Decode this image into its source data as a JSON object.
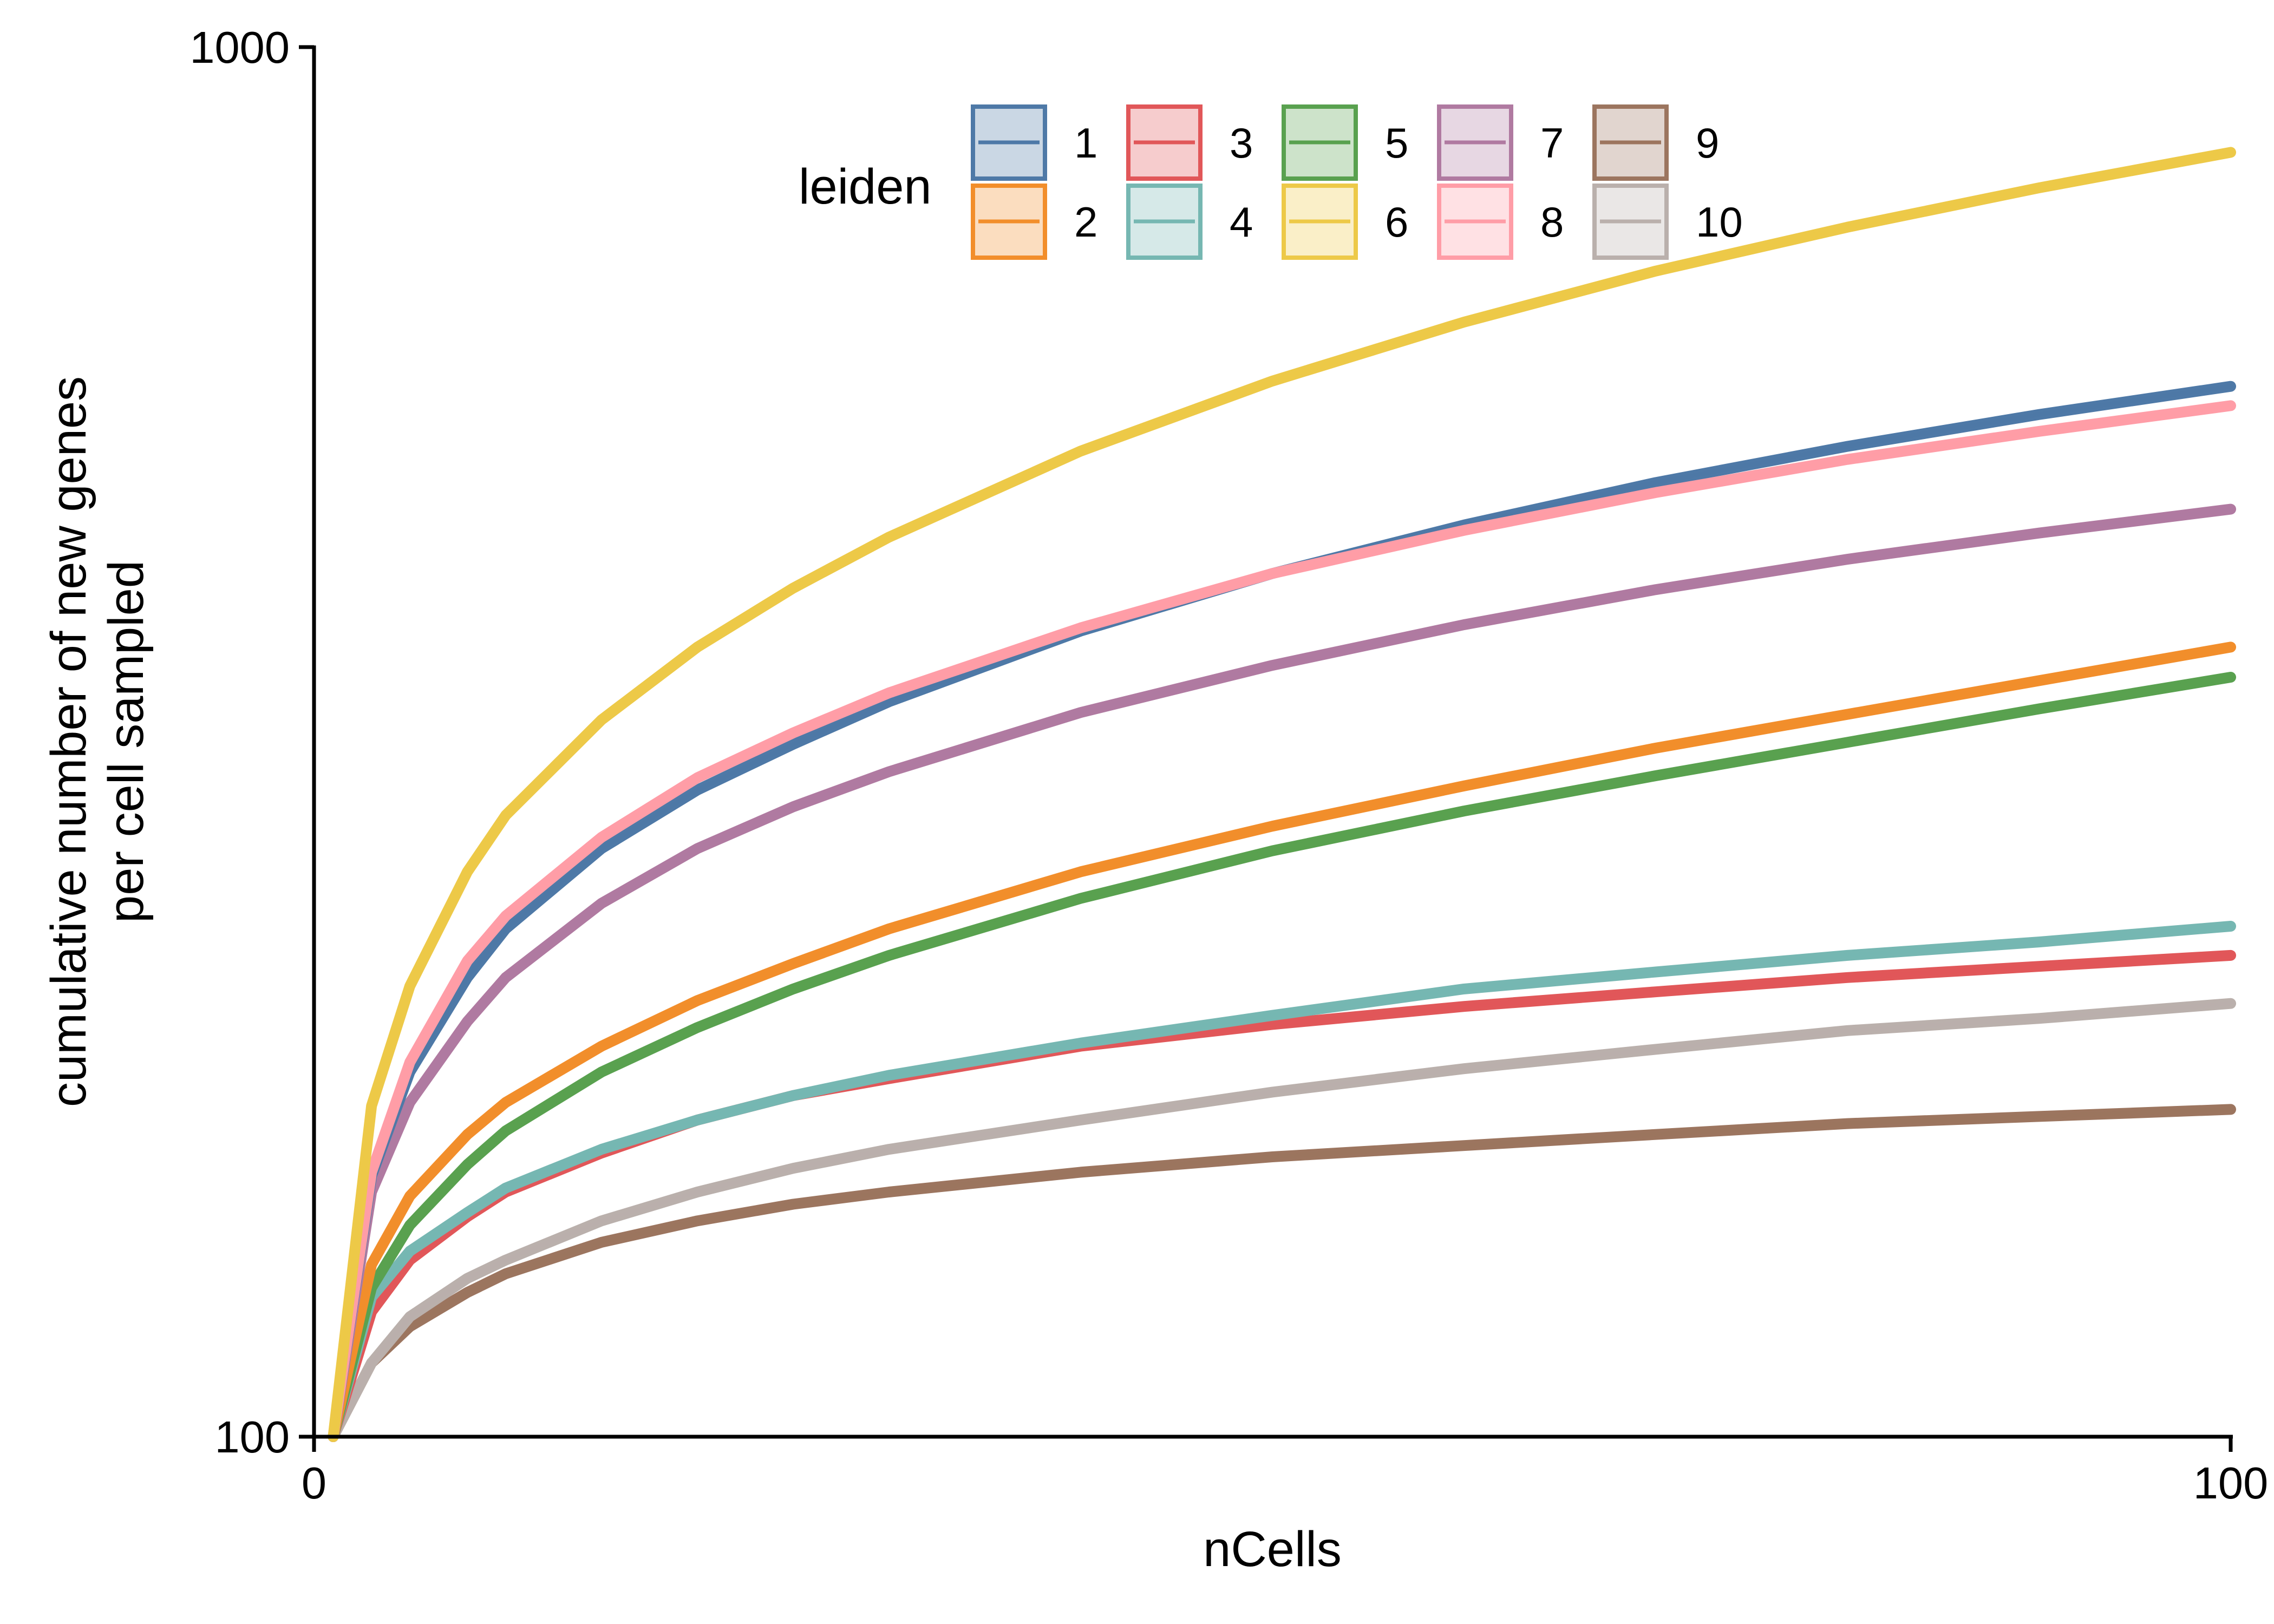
{
  "chart_data": {
    "type": "line",
    "title": "",
    "xlabel": "nCells",
    "ylabel_lines": [
      "cumulative number of new genes",
      "per cell sampled"
    ],
    "xlim": [
      0,
      100
    ],
    "ylim": [
      100,
      1000
    ],
    "y_scale": "log",
    "x_ticks": [
      "0",
      "100"
    ],
    "y_ticks": [
      "100",
      "1000"
    ],
    "grid": false,
    "legend": {
      "title": "leiden",
      "position": "top-center",
      "columns": 5
    },
    "series": [
      {
        "name": "1",
        "color": "#4E79A7",
        "x": [
          1,
          3,
          5,
          8,
          10,
          15,
          20,
          25,
          30,
          40,
          50,
          60,
          70,
          80,
          90,
          100
        ],
        "y": [
          100,
          154,
          183,
          214,
          232,
          265,
          292,
          315,
          338,
          380,
          418,
          453,
          486,
          516,
          544,
          570
        ]
      },
      {
        "name": "2",
        "color": "#F28E2B",
        "x": [
          1,
          3,
          5,
          8,
          10,
          15,
          20,
          25,
          30,
          40,
          50,
          60,
          70,
          80,
          90,
          100
        ],
        "y": [
          100,
          133,
          149,
          165,
          174,
          191,
          206,
          219,
          232,
          255,
          275,
          294,
          313,
          331,
          350,
          370
        ]
      },
      {
        "name": "3",
        "color": "#E15759",
        "x": [
          1,
          3,
          5,
          8,
          10,
          15,
          20,
          25,
          30,
          40,
          50,
          60,
          70,
          80,
          90,
          100
        ],
        "y": [
          100,
          123,
          134,
          144,
          150,
          160,
          169,
          176,
          181,
          191,
          198,
          204,
          209,
          214,
          218,
          222
        ]
      },
      {
        "name": "4",
        "color": "#76B7B2",
        "x": [
          1,
          3,
          5,
          8,
          10,
          15,
          20,
          25,
          30,
          40,
          50,
          60,
          70,
          80,
          90,
          100
        ],
        "y": [
          100,
          126,
          136,
          145,
          151,
          161,
          169,
          176,
          182,
          192,
          201,
          210,
          216,
          222,
          227,
          233
        ]
      },
      {
        "name": "5",
        "color": "#59A14F",
        "x": [
          1,
          3,
          5,
          8,
          10,
          15,
          20,
          25,
          30,
          40,
          50,
          60,
          70,
          80,
          90,
          100
        ],
        "y": [
          100,
          128,
          142,
          157,
          166,
          183,
          197,
          210,
          222,
          244,
          264,
          282,
          299,
          316,
          334,
          352
        ]
      },
      {
        "name": "6",
        "color": "#EDC948",
        "x": [
          1,
          3,
          5,
          8,
          10,
          15,
          20,
          25,
          30,
          40,
          50,
          60,
          70,
          80,
          90,
          100
        ],
        "y": [
          100,
          173,
          211,
          255,
          280,
          328,
          370,
          408,
          444,
          512,
          575,
          634,
          690,
          742,
          792,
          840
        ]
      },
      {
        "name": "7",
        "color": "#B07AA1",
        "x": [
          1,
          3,
          5,
          8,
          10,
          15,
          20,
          25,
          30,
          40,
          50,
          60,
          70,
          80,
          90,
          100
        ],
        "y": [
          100,
          150,
          174,
          199,
          214,
          242,
          265,
          284,
          301,
          332,
          359,
          384,
          407,
          428,
          447,
          465
        ]
      },
      {
        "name": "8",
        "color": "#FF9DA7",
        "x": [
          1,
          3,
          5,
          8,
          10,
          15,
          20,
          25,
          30,
          40,
          50,
          60,
          70,
          80,
          90,
          100
        ],
        "y": [
          100,
          155,
          186,
          220,
          237,
          270,
          298,
          321,
          343,
          382,
          418,
          449,
          478,
          505,
          529,
          552
        ]
      },
      {
        "name": "9",
        "color": "#9C755F",
        "x": [
          1,
          3,
          5,
          8,
          10,
          15,
          20,
          25,
          30,
          40,
          50,
          60,
          70,
          80,
          90,
          100
        ],
        "y": [
          100,
          113,
          120,
          127,
          131,
          138,
          143,
          147,
          150,
          155,
          159,
          162,
          165,
          168,
          170,
          172
        ]
      },
      {
        "name": "10",
        "color": "#BAB0AC",
        "x": [
          1,
          3,
          5,
          8,
          10,
          15,
          20,
          25,
          30,
          40,
          50,
          60,
          70,
          80,
          90,
          100
        ],
        "y": [
          100,
          113,
          122,
          130,
          134,
          143,
          150,
          156,
          161,
          169,
          177,
          184,
          190,
          196,
          200,
          205
        ]
      }
    ]
  }
}
